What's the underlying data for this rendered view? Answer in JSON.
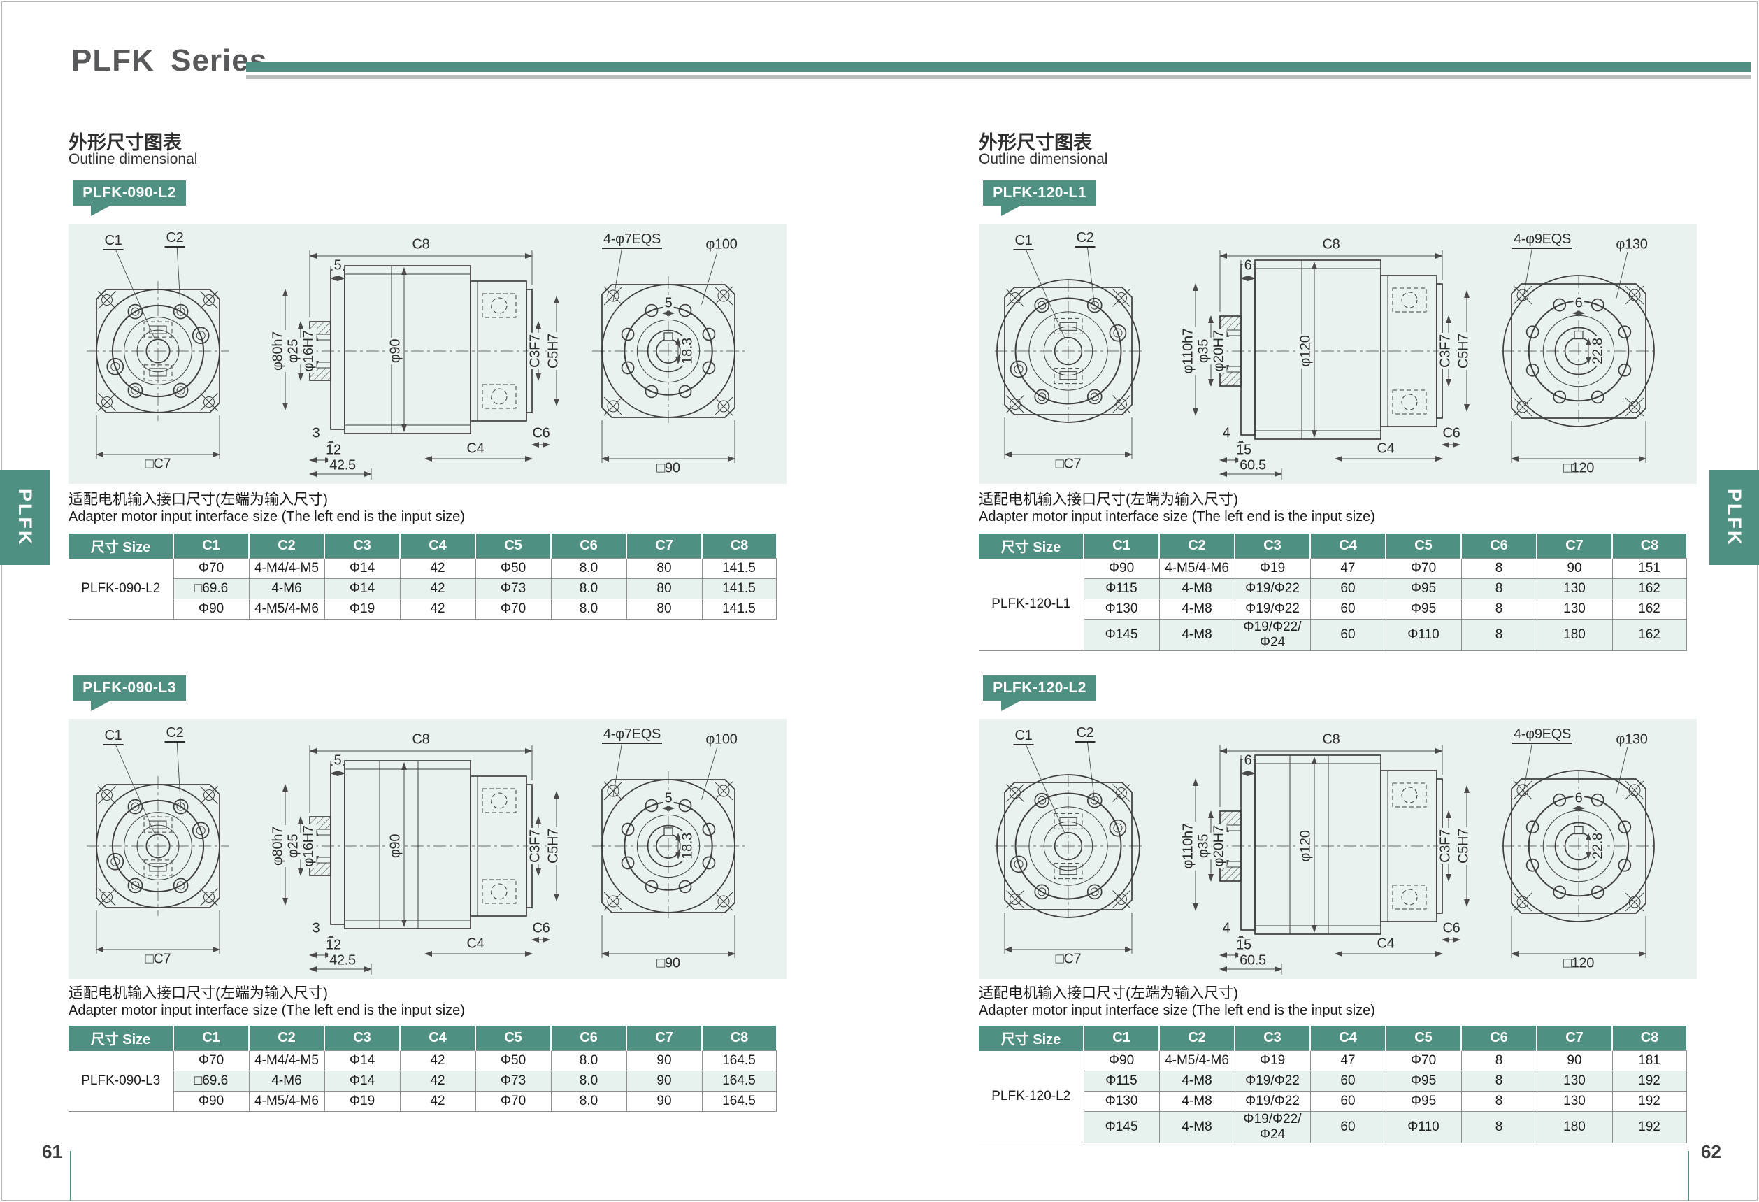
{
  "title": "PLFK Series",
  "tab_label": "PLFK",
  "colors": {
    "teal": "#4F9083",
    "panel_bg": "#E9F2EF",
    "row_shade": "#E7F2EE",
    "bar_gray": "#B9BCBD"
  },
  "pages": [
    {
      "page_number": "61",
      "heading_cn": "外形尺寸图表",
      "heading_en": "Outline dimensional",
      "sections": [
        {
          "badge": "PLFK-090-L2",
          "note_cn": "适配电机输入接口尺寸(左端为输入尺寸)",
          "note_en": "Adapter motor input interface size (The left end is the input size)",
          "drawing": {
            "c1": "C1",
            "c2": "C2",
            "c8": "C8",
            "top_offset": "5",
            "dia_outer": "φ80h7",
            "dia_mid": "φ25",
            "dia_bore": "φ16H7",
            "dia_body": "φ90",
            "fit1": "C3F7",
            "fit2": "C5H7",
            "bottom_a": "3",
            "bottom_b": "12",
            "bottom_len": "42.5",
            "c4": "C4",
            "c6": "C6",
            "front_square": "□C7",
            "rear_holes": "4-φ7EQS",
            "rear_dia": "φ100",
            "rear_key_w": "5",
            "rear_key_h": "18.3",
            "rear_square": "□90"
          },
          "table": {
            "size_header": "尺寸 Size",
            "col_headers": [
              "C1",
              "C2",
              "C3",
              "C4",
              "C5",
              "C6",
              "C7",
              "C8"
            ],
            "size": "PLFK-090-L2",
            "rows": [
              [
                "Φ70",
                "4-M4/4-M5",
                "Φ14",
                "42",
                "Φ50",
                "8.0",
                "80",
                "141.5"
              ],
              [
                "□69.6",
                "4-M6",
                "Φ14",
                "42",
                "Φ73",
                "8.0",
                "80",
                "141.5"
              ],
              [
                "Φ90",
                "4-M5/4-M6",
                "Φ19",
                "42",
                "Φ70",
                "8.0",
                "80",
                "141.5"
              ]
            ]
          }
        },
        {
          "badge": "PLFK-090-L3",
          "note_cn": "适配电机输入接口尺寸(左端为输入尺寸)",
          "note_en": "Adapter motor input interface size (The left end is the input size)",
          "drawing": {
            "c1": "C1",
            "c2": "C2",
            "c8": "C8",
            "top_offset": "5",
            "dia_outer": "φ80h7",
            "dia_mid": "φ25",
            "dia_bore": "φ16H7",
            "dia_body": "φ90",
            "fit1": "C3F7",
            "fit2": "C5H7",
            "bottom_a": "3",
            "bottom_b": "12",
            "bottom_len": "42.5",
            "c4": "C4",
            "c6": "C6",
            "front_square": "□C7",
            "rear_holes": "4-φ7EQS",
            "rear_dia": "φ100",
            "rear_key_w": "5",
            "rear_key_h": "18.3",
            "rear_square": "□90"
          },
          "table": {
            "size_header": "尺寸 Size",
            "col_headers": [
              "C1",
              "C2",
              "C3",
              "C4",
              "C5",
              "C6",
              "C7",
              "C8"
            ],
            "size": "PLFK-090-L3",
            "rows": [
              [
                "Φ70",
                "4-M4/4-M5",
                "Φ14",
                "42",
                "Φ50",
                "8.0",
                "90",
                "164.5"
              ],
              [
                "□69.6",
                "4-M6",
                "Φ14",
                "42",
                "Φ73",
                "8.0",
                "90",
                "164.5"
              ],
              [
                "Φ90",
                "4-M5/4-M6",
                "Φ19",
                "42",
                "Φ70",
                "8.0",
                "90",
                "164.5"
              ]
            ]
          }
        }
      ]
    },
    {
      "page_number": "62",
      "heading_cn": "外形尺寸图表",
      "heading_en": "Outline dimensional",
      "sections": [
        {
          "badge": "PLFK-120-L1",
          "note_cn": "适配电机输入接口尺寸(左端为输入尺寸)",
          "note_en": "Adapter motor input interface size (The left end is the input size)",
          "drawing": {
            "c1": "C1",
            "c2": "C2",
            "c8": "C8",
            "top_offset": "6",
            "dia_outer": "φ110h7",
            "dia_mid": "φ35",
            "dia_bore": "φ20H7",
            "dia_body": "φ120",
            "fit1": "C3F7",
            "fit2": "C5H7",
            "bottom_a": "4",
            "bottom_b": "15",
            "bottom_len": "60.5",
            "c4": "C4",
            "c6": "C6",
            "front_square": "□C7",
            "rear_holes": "4-φ9EQS",
            "rear_dia": "φ130",
            "rear_key_w": "6",
            "rear_key_h": "22.8",
            "rear_square": "□120"
          },
          "table": {
            "size_header": "尺寸 Size",
            "col_headers": [
              "C1",
              "C2",
              "C3",
              "C4",
              "C5",
              "C6",
              "C7",
              "C8"
            ],
            "size": "PLFK-120-L1",
            "rows": [
              [
                "Φ90",
                "4-M5/4-M6",
                "Φ19",
                "47",
                "Φ70",
                "8",
                "90",
                "151"
              ],
              [
                "Φ115",
                "4-M8",
                "Φ19/Φ22",
                "60",
                "Φ95",
                "8",
                "130",
                "162"
              ],
              [
                "Φ130",
                "4-M8",
                "Φ19/Φ22",
                "60",
                "Φ95",
                "8",
                "130",
                "162"
              ],
              [
                "Φ145",
                "4-M8",
                "Φ19/Φ22/Φ24",
                "60",
                "Φ110",
                "8",
                "180",
                "162"
              ]
            ]
          }
        },
        {
          "badge": "PLFK-120-L2",
          "note_cn": "适配电机输入接口尺寸(左端为输入尺寸)",
          "note_en": "Adapter motor input interface size (The left end is the input size)",
          "drawing": {
            "c1": "C1",
            "c2": "C2",
            "c8": "C8",
            "top_offset": "6",
            "dia_outer": "φ110h7",
            "dia_mid": "φ35",
            "dia_bore": "φ20H7",
            "dia_body": "φ120",
            "fit1": "C3F7",
            "fit2": "C5H7",
            "bottom_a": "4",
            "bottom_b": "15",
            "bottom_len": "60.5",
            "c4": "C4",
            "c6": "C6",
            "front_square": "□C7",
            "rear_holes": "4-φ9EQS",
            "rear_dia": "φ130",
            "rear_key_w": "6",
            "rear_key_h": "22.8",
            "rear_square": "□120"
          },
          "table": {
            "size_header": "尺寸 Size",
            "col_headers": [
              "C1",
              "C2",
              "C3",
              "C4",
              "C5",
              "C6",
              "C7",
              "C8"
            ],
            "size": "PLFK-120-L2",
            "rows": [
              [
                "Φ90",
                "4-M5/4-M6",
                "Φ19",
                "47",
                "Φ70",
                "8",
                "90",
                "181"
              ],
              [
                "Φ115",
                "4-M8",
                "Φ19/Φ22",
                "60",
                "Φ95",
                "8",
                "130",
                "192"
              ],
              [
                "Φ130",
                "4-M8",
                "Φ19/Φ22",
                "60",
                "Φ95",
                "8",
                "130",
                "192"
              ],
              [
                "Φ145",
                "4-M8",
                "Φ19/Φ22/Φ24",
                "60",
                "Φ110",
                "8",
                "180",
                "192"
              ]
            ]
          }
        }
      ]
    }
  ]
}
